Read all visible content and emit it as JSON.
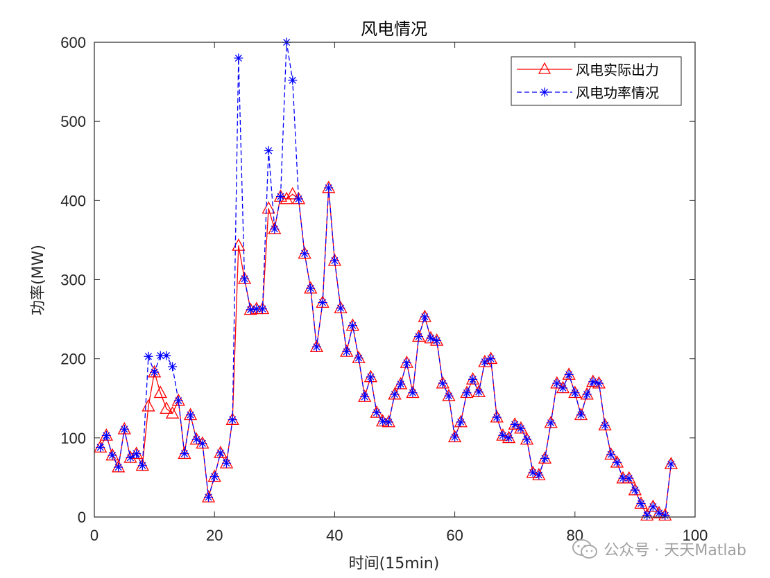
{
  "chart_data": {
    "type": "line",
    "title": "风电情况",
    "xlabel": "时间(15min)",
    "ylabel": "功率(MW)",
    "xlim": [
      0,
      100
    ],
    "ylim": [
      0,
      600
    ],
    "xticks": [
      0,
      20,
      40,
      60,
      80,
      100
    ],
    "yticks": [
      0,
      100,
      200,
      300,
      400,
      500,
      600
    ],
    "grid": false,
    "legend_position": "top-right",
    "x": [
      1,
      2,
      3,
      4,
      5,
      6,
      7,
      8,
      9,
      10,
      11,
      12,
      13,
      14,
      15,
      16,
      17,
      18,
      19,
      20,
      21,
      22,
      23,
      24,
      25,
      26,
      27,
      28,
      29,
      30,
      31,
      32,
      33,
      34,
      35,
      36,
      37,
      38,
      39,
      40,
      41,
      42,
      43,
      44,
      45,
      46,
      47,
      48,
      49,
      50,
      51,
      52,
      53,
      54,
      55,
      56,
      57,
      58,
      59,
      60,
      61,
      62,
      63,
      64,
      65,
      66,
      67,
      68,
      69,
      70,
      71,
      72,
      73,
      74,
      75,
      76,
      77,
      78,
      79,
      80,
      81,
      82,
      83,
      84,
      85,
      86,
      87,
      88,
      89,
      90,
      91,
      92,
      93,
      94,
      95,
      96
    ],
    "series": [
      {
        "name": "风电实际出力",
        "color": "#ff0000",
        "line_style": "solid",
        "marker": "triangle",
        "values": [
          88,
          103,
          78,
          63,
          111,
          75,
          80,
          65,
          140,
          183,
          157,
          137,
          131,
          147,
          80,
          129,
          98,
          93,
          25,
          51,
          81,
          68,
          123,
          343,
          301,
          262,
          263,
          263,
          390,
          364,
          405,
          402,
          408,
          402,
          333,
          289,
          215,
          271,
          416,
          324,
          264,
          209,
          242,
          201,
          152,
          177,
          132,
          121,
          120,
          155,
          168,
          195,
          157,
          228,
          253,
          226,
          223,
          169,
          153,
          101,
          120,
          157,
          174,
          158,
          196,
          200,
          126,
          103,
          100,
          117,
          112,
          98,
          56,
          53,
          74,
          119,
          169,
          163,
          180,
          157,
          129,
          155,
          171,
          169,
          116,
          79,
          69,
          49,
          49,
          34,
          17,
          2,
          13,
          5,
          2,
          67
        ]
      },
      {
        "name": "风电功率情况",
        "color": "#0000ff",
        "line_style": "dashed",
        "marker": "asterisk",
        "values": [
          88,
          103,
          78,
          63,
          111,
          75,
          80,
          65,
          203,
          183,
          204,
          204,
          190,
          147,
          80,
          129,
          98,
          93,
          25,
          51,
          81,
          68,
          123,
          580,
          301,
          262,
          263,
          263,
          463,
          364,
          405,
          600,
          552,
          402,
          333,
          289,
          215,
          271,
          416,
          324,
          264,
          209,
          242,
          201,
          152,
          177,
          132,
          121,
          120,
          155,
          168,
          195,
          157,
          228,
          253,
          226,
          223,
          169,
          153,
          101,
          120,
          157,
          174,
          158,
          196,
          200,
          126,
          103,
          100,
          117,
          112,
          98,
          56,
          53,
          74,
          119,
          169,
          163,
          180,
          157,
          129,
          155,
          171,
          169,
          116,
          79,
          69,
          49,
          49,
          34,
          17,
          2,
          13,
          5,
          2,
          67
        ]
      }
    ]
  },
  "watermark": {
    "text": "公众号 · 天天Matlab",
    "icon": "wechat-icon"
  }
}
